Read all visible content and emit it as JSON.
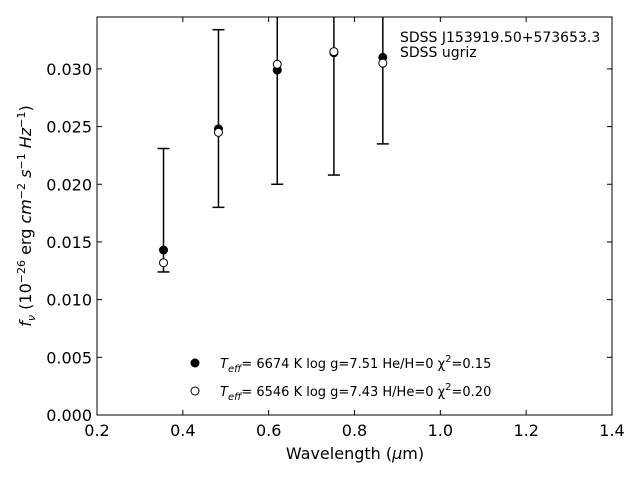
{
  "chart_data": {
    "type": "scatter",
    "xlabel": "Wavelength (μm)",
    "ylabel": "f_ν (10^-26 erg cm^-2 s^-1 Hz^-1)",
    "xlim": [
      0.2,
      1.4
    ],
    "ylim": [
      0.0,
      0.0345
    ],
    "xticks": [
      0.2,
      0.4,
      0.6,
      0.8,
      1.0,
      1.2,
      1.4
    ],
    "xtick_labels": [
      "0.2",
      "0.4",
      "0.6",
      "0.8",
      "1.0",
      "1.2",
      "1.4"
    ],
    "yticks": [
      0.0,
      0.005,
      0.01,
      0.015,
      0.02,
      0.025,
      0.03
    ],
    "ytick_labels": [
      "0.000",
      "0.005",
      "0.010",
      "0.015",
      "0.020",
      "0.025",
      "0.030"
    ],
    "annotations": [
      "SDSS J153919.50+573653.3",
      "SDSS ugriz"
    ],
    "observed": {
      "x": [
        0.355,
        0.483,
        0.62,
        0.752,
        0.866
      ],
      "y": [
        0.0132,
        0.0245,
        0.0304,
        0.0315,
        0.0305
      ],
      "yerr_low": [
        0.0124,
        0.018,
        0.02,
        0.0208,
        0.0235
      ],
      "yerr_high": [
        0.0231,
        0.0334,
        0.038,
        0.038,
        0.038
      ]
    },
    "series": [
      {
        "marker": "filled-circle",
        "x": [
          0.355,
          0.483,
          0.62,
          0.752,
          0.866
        ],
        "y": [
          0.0143,
          0.0248,
          0.0299,
          0.0314,
          0.031
        ],
        "label_main": "T",
        "label_sub": "eff",
        "label_rest": "=  6674 K  log g=7.51  He/H=0  χ",
        "label_sup": "2",
        "label_end": "=0.15"
      },
      {
        "marker": "open-circle",
        "x": [
          0.355,
          0.483,
          0.62,
          0.752,
          0.866
        ],
        "y": [
          0.0132,
          0.0245,
          0.0304,
          0.0315,
          0.0305
        ],
        "label_main": "T",
        "label_sub": "eff",
        "label_rest": "=  6546 K  log g=7.43  H/He=0  χ",
        "label_sup": "2",
        "label_end": "=0.20"
      }
    ],
    "colors": {
      "marker": "#000000",
      "background": "#ffffff",
      "axes": "#000000"
    }
  }
}
